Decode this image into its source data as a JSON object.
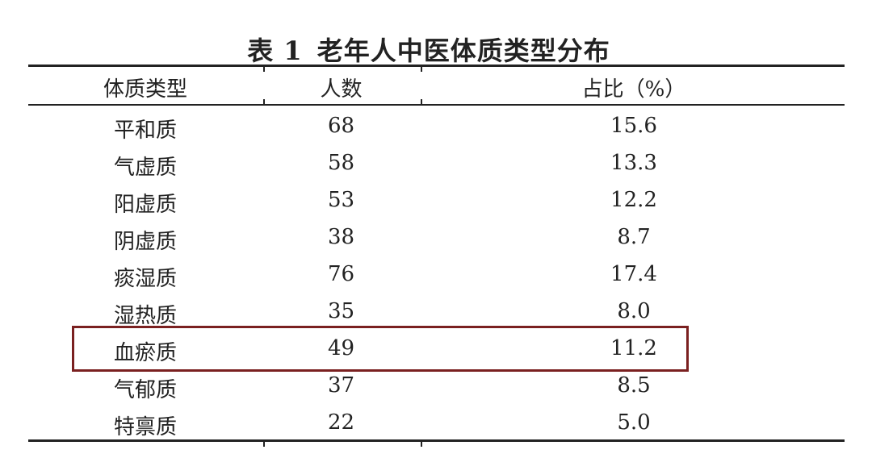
{
  "title": {
    "label": "表 1",
    "text": "老年人中医体质类型分布"
  },
  "headers": [
    "体质类型",
    "人数",
    "占比（%）"
  ],
  "rows": [
    [
      "平和质",
      "68",
      "15.6"
    ],
    [
      "气虚质",
      "58",
      "13.3"
    ],
    [
      "阳虚质",
      "53",
      "12.2"
    ],
    [
      "阴虚质",
      "38",
      "8.7"
    ],
    [
      "痰湿质",
      "76",
      "17.4"
    ],
    [
      "湿热质",
      "35",
      "8.0"
    ],
    [
      "血瘀质",
      "49",
      "11.2"
    ],
    [
      "气郁质",
      "37",
      "8.5"
    ],
    [
      "特禀质",
      "22",
      "5.0"
    ]
  ],
  "highlight": {
    "row": "血瘀质",
    "color": "#7a2020"
  }
}
